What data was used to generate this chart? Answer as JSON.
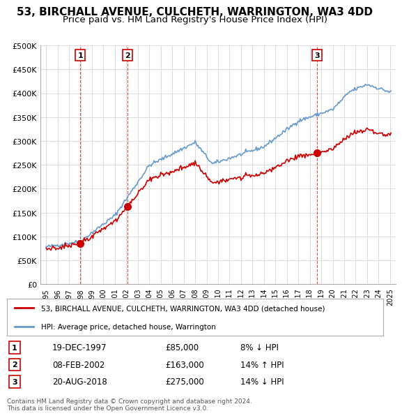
{
  "title": "53, BIRCHALL AVENUE, CULCHETH, WARRINGTON, WA3 4DD",
  "subtitle": "Price paid vs. HM Land Registry's House Price Index (HPI)",
  "ylabel": "",
  "ylim": [
    0,
    500000
  ],
  "yticks": [
    0,
    50000,
    100000,
    150000,
    200000,
    250000,
    300000,
    350000,
    400000,
    450000,
    500000
  ],
  "ytick_labels": [
    "£0",
    "£50K",
    "£100K",
    "£150K",
    "£200K",
    "£250K",
    "£300K",
    "£350K",
    "£400K",
    "£450K",
    "£500K"
  ],
  "x_start_year": 1995,
  "x_end_year": 2025,
  "house_color": "#cc0000",
  "hpi_color": "#6699cc",
  "vline_color": "#cc0000",
  "sale_marker_color": "#cc0000",
  "background_color": "#ffffff",
  "grid_color": "#dddddd",
  "title_fontsize": 11,
  "subtitle_fontsize": 9.5,
  "sales": [
    {
      "date_num": 1997.97,
      "price": 85000,
      "label": "1"
    },
    {
      "date_num": 2002.1,
      "price": 163000,
      "label": "2"
    },
    {
      "date_num": 2018.64,
      "price": 275000,
      "label": "3"
    }
  ],
  "legend_entries": [
    {
      "label": "53, BIRCHALL AVENUE, CULCHETH, WARRINGTON, WA3 4DD (detached house)",
      "color": "#cc0000"
    },
    {
      "label": "HPI: Average price, detached house, Warrington",
      "color": "#6699cc"
    }
  ],
  "table_rows": [
    {
      "num": "1",
      "date": "19-DEC-1997",
      "price": "£85,000",
      "change": "8% ↓ HPI"
    },
    {
      "num": "2",
      "date": "08-FEB-2002",
      "price": "£163,000",
      "change": "14% ↑ HPI"
    },
    {
      "num": "3",
      "date": "20-AUG-2018",
      "price": "£275,000",
      "change": "14% ↓ HPI"
    }
  ],
  "footnote": "Contains HM Land Registry data © Crown copyright and database right 2024.\nThis data is licensed under the Open Government Licence v3.0."
}
